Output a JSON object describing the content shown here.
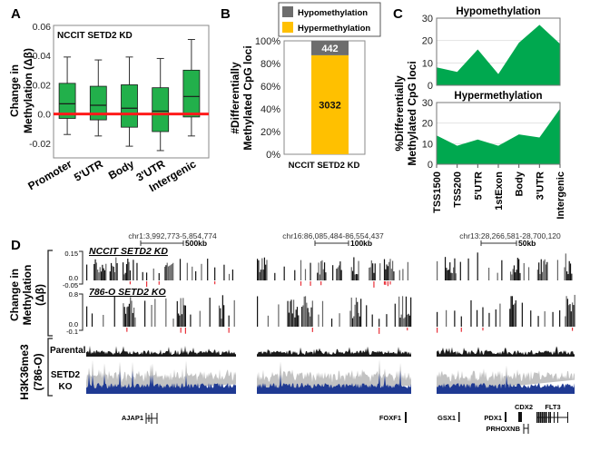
{
  "panels": {
    "A": "A",
    "B": "B",
    "C": "C",
    "D": "D"
  },
  "colors": {
    "box_green": "#22b04b",
    "zero_line": "#ff1a1a",
    "hypo_gray": "#6d6d6d",
    "hyper_yellow": "#ffc000",
    "area_green": "#00a84f",
    "h3k36_blue": "#1f3a93",
    "dm_red": "#e8313a"
  },
  "chart_data": [
    {
      "id": "A",
      "type": "box",
      "title": "NCCIT SETD2 KD",
      "ylabel": "Change in Methylation (Δβ)",
      "ylabel_lines": [
        "Change in",
        "Methylation (Δβ)"
      ],
      "xlabel": "",
      "ylim": [
        -0.03,
        0.06
      ],
      "yticks": [
        -0.02,
        0.0,
        0.02,
        0.04,
        0.06
      ],
      "ytick_labels": [
        "-0.02",
        "0.0",
        "0.02",
        "0.04",
        "0.06"
      ],
      "reference_line": 0.0,
      "categories": [
        "Promoter",
        "5'UTR",
        "Body",
        "3'UTR",
        "Intergenic"
      ],
      "boxes": [
        {
          "min": -0.014,
          "q1": -0.003,
          "median": 0.007,
          "q3": 0.021,
          "max": 0.039
        },
        {
          "min": -0.015,
          "q1": -0.004,
          "median": 0.006,
          "q3": 0.019,
          "max": 0.037
        },
        {
          "min": -0.022,
          "q1": -0.009,
          "median": 0.004,
          "q3": 0.02,
          "max": 0.039
        },
        {
          "min": -0.025,
          "q1": -0.012,
          "median": 0.002,
          "q3": 0.018,
          "max": 0.038
        },
        {
          "min": -0.015,
          "q1": -0.002,
          "median": 0.012,
          "q3": 0.03,
          "max": 0.051
        }
      ]
    },
    {
      "id": "B",
      "type": "bar",
      "stacked": true,
      "percent": true,
      "ylabel": "#Differentially Methylated CpG loci",
      "ylabel_lines": [
        "#Differentially",
        "Methylated CpG loci"
      ],
      "ylim": [
        0,
        100
      ],
      "yticks": [
        0,
        20,
        40,
        60,
        80,
        100
      ],
      "ytick_labels": [
        "0%",
        "20%",
        "40%",
        "60%",
        "80%",
        "100%"
      ],
      "categories": [
        "NCCIT SETD2 KD"
      ],
      "legend_position": "top",
      "series": [
        {
          "name": "Hypermethylation",
          "values": [
            3032
          ],
          "label": "3032"
        },
        {
          "name": "Hypomethylation",
          "values": [
            442
          ],
          "label": "442"
        }
      ],
      "legend": [
        "Hypomethylation",
        "Hypermethylation"
      ]
    },
    {
      "id": "C",
      "type": "area",
      "ylabel": "%Differentially Methylated CpG loci",
      "ylabel_lines": [
        "%Differentially",
        "Methylated CpG loci"
      ],
      "categories": [
        "TSS1500",
        "TSS200",
        "5'UTR",
        "1stExon",
        "Body",
        "3'UTR",
        "Intergenic"
      ],
      "ylim": [
        0,
        30
      ],
      "yticks": [
        0,
        10,
        20,
        30
      ],
      "grid": true,
      "series": [
        {
          "name": "Hypomethylation",
          "values": [
            8,
            6,
            16,
            5,
            19,
            27,
            18.5
          ]
        },
        {
          "name": "Hypermethylation",
          "values": [
            14,
            9,
            12,
            9,
            14.5,
            13,
            27
          ]
        }
      ]
    }
  ],
  "panelD": {
    "regions": [
      {
        "coords": "chr1:3,992,773-5,854,774",
        "scale": "500kb",
        "genes": [
          "AJAP1"
        ]
      },
      {
        "coords": "chr16:86,085,484-86,554,437",
        "scale": "100kb",
        "genes": [
          "FOXF1"
        ]
      },
      {
        "coords": "chr13:28,266,581-28,700,120",
        "scale": "50kb",
        "genes": [
          "GSX1",
          "PDX1",
          "CDX2",
          "PRHOXNB",
          "FLT3"
        ]
      }
    ],
    "methylation_label": [
      "Change in",
      "Methylation",
      "(Δβ)"
    ],
    "tracks": [
      {
        "name": "NCCIT SETD2 KD",
        "ymax": "0.15",
        "zero": "0.0",
        "ymin": "-0.05"
      },
      {
        "name": "786-O SETD2 KO",
        "ymax": "0.8",
        "zero": "0.0",
        "ymin": "-0.1"
      }
    ],
    "h3k36_label": [
      "H3K36me3",
      "(786-O)"
    ],
    "h3k36_tracks": [
      {
        "name": "Parental"
      },
      {
        "name": [
          "SETD2",
          "KO"
        ]
      }
    ]
  }
}
